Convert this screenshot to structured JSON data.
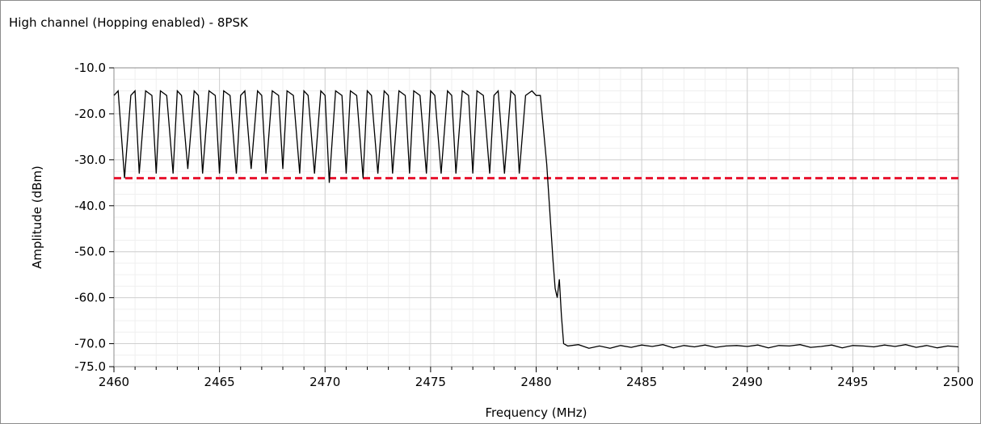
{
  "window": {
    "title": "High channel (Hopping enabled) - 8PSK"
  },
  "chart_data": {
    "type": "line",
    "title": "High channel (Hopping enabled) - 8PSK",
    "xlabel": "Frequency (MHz)",
    "ylabel": "Amplitude (dBm)",
    "xlim": [
      2460,
      2500
    ],
    "ylim": [
      -75,
      -10
    ],
    "x_ticks": [
      2460,
      2465,
      2470,
      2475,
      2480,
      2485,
      2490,
      2495,
      2500
    ],
    "x_tick_labels": [
      "2460",
      "2465",
      "2470",
      "2475",
      "2480",
      "2485",
      "2490",
      "2495",
      "2500"
    ],
    "y_ticks": [
      -10,
      -20,
      -30,
      -40,
      -50,
      -60,
      -70,
      -75
    ],
    "y_tick_labels": [
      "-10.0",
      "-20.0",
      "-30.0",
      "-40.0",
      "-50.0",
      "-60.0",
      "-70.0",
      "-75.0"
    ],
    "grid": true,
    "limit_line": {
      "y": -34,
      "color": "#e8112d",
      "style": "dashed"
    },
    "series": [
      {
        "color": "#000000",
        "x": [
          2460.0,
          2460.2,
          2460.5,
          2460.8,
          2461.0,
          2461.2,
          2461.5,
          2461.8,
          2462.0,
          2462.2,
          2462.5,
          2462.8,
          2463.0,
          2463.2,
          2463.5,
          2463.8,
          2464.0,
          2464.2,
          2464.5,
          2464.8,
          2465.0,
          2465.2,
          2465.5,
          2465.8,
          2466.0,
          2466.2,
          2466.5,
          2466.8,
          2467.0,
          2467.2,
          2467.5,
          2467.8,
          2468.0,
          2468.2,
          2468.5,
          2468.8,
          2469.0,
          2469.2,
          2469.5,
          2469.8,
          2470.0,
          2470.2,
          2470.5,
          2470.8,
          2471.0,
          2471.2,
          2471.5,
          2471.8,
          2472.0,
          2472.2,
          2472.5,
          2472.8,
          2473.0,
          2473.2,
          2473.5,
          2473.8,
          2474.0,
          2474.2,
          2474.5,
          2474.8,
          2475.0,
          2475.2,
          2475.5,
          2475.8,
          2476.0,
          2476.2,
          2476.5,
          2476.8,
          2477.0,
          2477.2,
          2477.5,
          2477.8,
          2478.0,
          2478.2,
          2478.5,
          2478.8,
          2479.0,
          2479.2,
          2479.5,
          2479.8,
          2480.0,
          2480.2,
          2480.5,
          2480.6,
          2480.7,
          2480.8,
          2480.9,
          2481.0,
          2481.1,
          2481.2,
          2481.3,
          2481.5,
          2482.0,
          2482.5,
          2483.0,
          2483.5,
          2484.0,
          2484.5,
          2485.0,
          2485.5,
          2486.0,
          2486.5,
          2487.0,
          2487.5,
          2488.0,
          2488.5,
          2489.0,
          2489.5,
          2490.0,
          2490.5,
          2491.0,
          2491.5,
          2492.0,
          2492.5,
          2493.0,
          2493.5,
          2494.0,
          2494.5,
          2495.0,
          2495.5,
          2496.0,
          2496.5,
          2497.0,
          2497.5,
          2498.0,
          2498.5,
          2499.0,
          2499.5,
          2500.0
        ],
        "y": [
          -16,
          -15,
          -34,
          -16,
          -15,
          -33,
          -15,
          -16,
          -33,
          -15,
          -16,
          -33,
          -15,
          -16,
          -32,
          -15,
          -16,
          -33,
          -15,
          -16,
          -33,
          -15,
          -16,
          -33,
          -16,
          -15,
          -32,
          -15,
          -16,
          -33,
          -15,
          -16,
          -32,
          -15,
          -16,
          -33,
          -15,
          -16,
          -33,
          -15,
          -16,
          -35,
          -15,
          -16,
          -33,
          -15,
          -16,
          -34,
          -15,
          -16,
          -33,
          -15,
          -16,
          -33,
          -15,
          -16,
          -33,
          -15,
          -16,
          -33,
          -15,
          -16,
          -33,
          -15,
          -16,
          -33,
          -15,
          -16,
          -33,
          -15,
          -16,
          -33,
          -16,
          -15,
          -33,
          -15,
          -16,
          -33,
          -16,
          -15,
          -16,
          -16,
          -31,
          -38,
          -45,
          -52,
          -58,
          -60,
          -56,
          -64,
          -70,
          -70.5,
          -70.2,
          -71,
          -70.5,
          -71,
          -70.4,
          -70.8,
          -70.3,
          -70.6,
          -70.2,
          -70.9,
          -70.4,
          -70.7,
          -70.3,
          -70.8,
          -70.5,
          -70.4,
          -70.6,
          -70.3,
          -70.9,
          -70.4,
          -70.5,
          -70.2,
          -70.8,
          -70.6,
          -70.3,
          -70.9,
          -70.4,
          -70.5,
          -70.7,
          -70.3,
          -70.6,
          -70.2,
          -70.8,
          -70.4,
          -70.9,
          -70.5,
          -70.7
        ]
      }
    ]
  }
}
